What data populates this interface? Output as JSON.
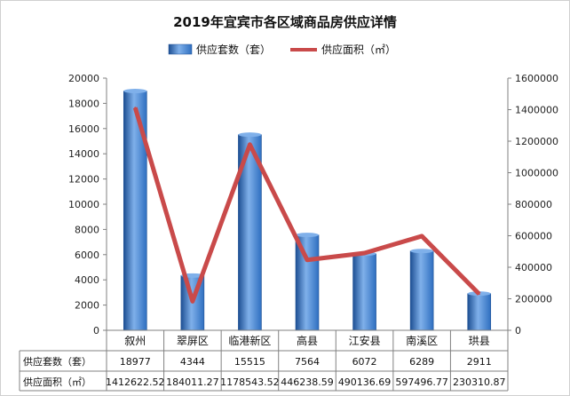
{
  "chart_data": {
    "type": "bar",
    "title": "2019年宜宾市各区域商品房供应详情",
    "categories": [
      "叙州",
      "翠屏区",
      "临港新区",
      "高县",
      "江安县",
      "南溪区",
      "珙县"
    ],
    "series": [
      {
        "name": "供应套数（套）",
        "type": "bar",
        "axis": "left",
        "values": [
          18977,
          4344,
          15515,
          7564,
          6072,
          6289,
          2911
        ]
      },
      {
        "name": "供应面积（㎡）",
        "type": "line",
        "axis": "right",
        "values": [
          1412622.52,
          184011.27,
          1178543.52,
          446238.59,
          490136.69,
          597496.77,
          230310.87
        ]
      }
    ],
    "table_rows": [
      {
        "label": "供应套数（套）",
        "cells": [
          "18977",
          "4344",
          "15515",
          "7564",
          "6072",
          "6289",
          "2911"
        ]
      },
      {
        "label": "供应面积（㎡）",
        "cells": [
          "1412622.52",
          "184011.27",
          "1178543.52",
          "446238.59",
          "490136.69",
          "597496.77",
          "230310.87"
        ]
      }
    ],
    "left_axis": {
      "range": [
        0,
        20000
      ],
      "ticks": [
        "0",
        "2000",
        "4000",
        "6000",
        "8000",
        "10000",
        "12000",
        "14000",
        "16000",
        "18000",
        "20000"
      ]
    },
    "right_axis": {
      "range": [
        0,
        1600000
      ],
      "ticks": [
        "0",
        "200000",
        "400000",
        "600000",
        "800000",
        "1000000",
        "1200000",
        "1400000",
        "1600000"
      ]
    },
    "legend_position": "top",
    "grid": false,
    "colors": {
      "bar": "#2f6fc0",
      "bar_light": "#7fb0ea",
      "bar_dark": "#1d4f93",
      "line": "#c94a4a",
      "axis": "#808080"
    }
  }
}
